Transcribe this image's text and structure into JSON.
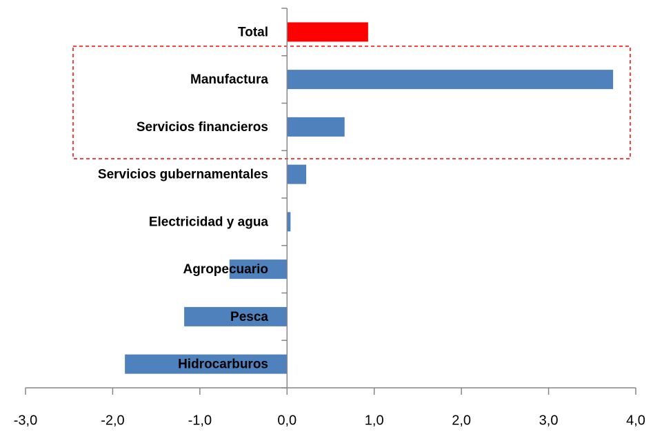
{
  "chart_data": {
    "type": "bar",
    "orientation": "horizontal",
    "categories": [
      "Total",
      "Manufactura",
      "Servicios financieros",
      "Servicios gubernamentales",
      "Electricidad y agua",
      "Agropecuario",
      "Pesca",
      "Hidrocarburos"
    ],
    "values": [
      0.93,
      3.74,
      0.66,
      0.22,
      0.04,
      -0.66,
      -1.18,
      -1.86
    ],
    "colors": [
      "#ff0000",
      "#4f81bd",
      "#4f81bd",
      "#4f81bd",
      "#4f81bd",
      "#4f81bd",
      "#4f81bd",
      "#4f81bd"
    ],
    "xlim": [
      -3,
      4
    ],
    "xticks": [
      {
        "value": -3,
        "label": "-3,0"
      },
      {
        "value": -2,
        "label": "-2,0"
      },
      {
        "value": -1,
        "label": "-1,0"
      },
      {
        "value": 0,
        "label": "0,0"
      },
      {
        "value": 1,
        "label": "1,0"
      },
      {
        "value": 2,
        "label": "2,0"
      },
      {
        "value": 3,
        "label": "3,0"
      },
      {
        "value": 4,
        "label": "4,0"
      }
    ],
    "grid": false
  }
}
